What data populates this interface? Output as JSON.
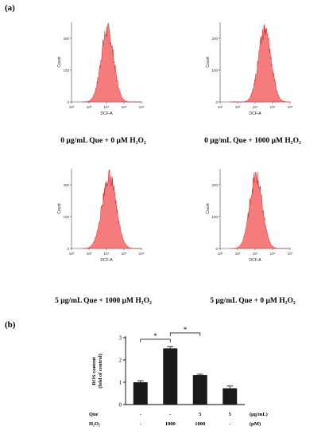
{
  "panel_a_label": "(a)",
  "panel_b_label": "(b)",
  "histograms": [
    {
      "caption": "0 μg/mL Que + 0 μM H₂O₂",
      "peak_log": 4.05,
      "width": 0.36
    },
    {
      "caption": "0 μg/mL Que + 1000 μM H₂O₂",
      "peak_log": 4.55,
      "width": 0.36
    },
    {
      "caption": "5 μg/mL Que + 1000 μM H₂O₂",
      "peak_log": 4.15,
      "width": 0.4
    },
    {
      "caption": "5 μg/mL Que + 0 μM H₂O₂",
      "peak_log": 4.05,
      "width": 0.36
    }
  ],
  "chart_data": [
    {
      "type": "area",
      "xlabel": "DCF-A",
      "ylabel": "Count",
      "x_scale": "log",
      "x_ticks": [
        "10²",
        "10³",
        "10⁴",
        "10⁵",
        "10⁶"
      ],
      "y_ticks": [
        "0",
        "100",
        "200"
      ],
      "ylim": [
        0,
        250
      ],
      "fill_color": "#f47c7c",
      "edge_color": "#d42a2a"
    },
    {
      "type": "bar",
      "ylabel_line1": "ROS content",
      "ylabel_line2": "(fold of control)",
      "ylim": [
        0,
        3
      ],
      "y_ticks": [
        "0",
        "1",
        "2",
        "3"
      ],
      "values": [
        1.0,
        2.52,
        1.32,
        0.73
      ],
      "errors": [
        0.07,
        0.08,
        0.04,
        0.1
      ],
      "significance": [
        {
          "from": 0,
          "to": 1,
          "label": "*"
        },
        {
          "from": 1,
          "to": 2,
          "label": "*"
        }
      ],
      "bar_color": "#1a1a1a",
      "row_labels": [
        {
          "name": "Que",
          "values": [
            "-",
            "-",
            "5",
            "5"
          ],
          "unit": "(μg/mL)"
        },
        {
          "name": "H₂O₂",
          "values": [
            "-",
            "1000",
            "1000",
            "-"
          ],
          "unit": "(μM)"
        }
      ]
    }
  ]
}
